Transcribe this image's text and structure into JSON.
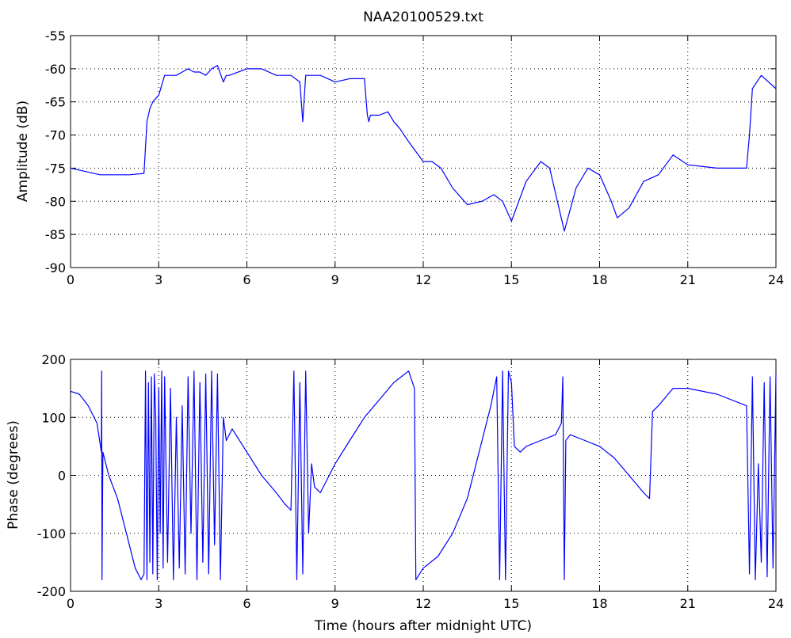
{
  "figure": {
    "background": "#ffffff",
    "line_color": "#0000ff"
  },
  "chart_data": [
    {
      "type": "line",
      "title": "NAA20100529.txt",
      "xlabel": "",
      "ylabel": "Amplitude (dB)",
      "xlim": [
        0,
        24
      ],
      "ylim": [
        -90,
        -55
      ],
      "xticks": [
        0,
        3,
        6,
        9,
        12,
        15,
        18,
        21,
        24
      ],
      "yticks": [
        -90,
        -85,
        -80,
        -75,
        -70,
        -65,
        -60,
        -55
      ],
      "grid": true,
      "color": "#0000ff",
      "series": [
        {
          "x": [
            0,
            0.5,
            1,
            1.5,
            2,
            2.5,
            2.6,
            2.7,
            2.8,
            3,
            3.2,
            3.4,
            3.6,
            3.8,
            4,
            4.2,
            4.4,
            4.6,
            4.8,
            5,
            5.2,
            5.3,
            5.4,
            6,
            6.5,
            7,
            7.5,
            7.8,
            7.9,
            8,
            8.1,
            8.5,
            9,
            9.5,
            10,
            10.1,
            10.15,
            10.2,
            10.5,
            10.8,
            11,
            11.2,
            11.5,
            12,
            12.3,
            12.6,
            13,
            13.5,
            14,
            14.4,
            14.7,
            15,
            15.5,
            16,
            16.3,
            16.8,
            17.2,
            17.6,
            18,
            18.4,
            18.6,
            19,
            19.5,
            20,
            20.5,
            21,
            22,
            23,
            23.1,
            23.2,
            23.5,
            24
          ],
          "y": [
            -75,
            -75.5,
            -76,
            -76,
            -76,
            -75.8,
            -68,
            -66,
            -65,
            -64,
            -61,
            -61,
            -61,
            -60.5,
            -60,
            -60.5,
            -60.5,
            -61,
            -60,
            -59.5,
            -62,
            -61,
            -61,
            -60,
            -60,
            -61,
            -61,
            -62,
            -68,
            -61,
            -61,
            -61,
            -62,
            -61.5,
            -61.5,
            -67,
            -68,
            -67,
            -67,
            -66.5,
            -68,
            -69,
            -71,
            -74,
            -74,
            -75,
            -78,
            -80.5,
            -80,
            -79,
            -80,
            -83,
            -77,
            -74,
            -75,
            -84.5,
            -78,
            -75,
            -76,
            -80,
            -82.5,
            -81,
            -77,
            -76,
            -73,
            -74.5,
            -75,
            -75,
            -70,
            -63,
            -61,
            -63
          ]
        }
      ]
    },
    {
      "type": "line",
      "title": "",
      "xlabel": "Time (hours after midnight UTC)",
      "ylabel": "Phase (degrees)",
      "xlim": [
        0,
        24
      ],
      "ylim": [
        -200,
        200
      ],
      "xticks": [
        0,
        3,
        6,
        9,
        12,
        15,
        18,
        21,
        24
      ],
      "yticks": [
        -200,
        -100,
        0,
        100,
        200
      ],
      "grid": true,
      "color": "#0000ff",
      "series": [
        {
          "x": [
            0,
            0.3,
            0.6,
            0.9,
            1.05,
            1.06,
            1.07,
            1.1,
            1.3,
            1.6,
            1.9,
            2.2,
            2.4,
            2.5,
            2.55,
            2.6,
            2.65,
            2.7,
            2.75,
            2.8,
            2.85,
            2.9,
            2.95,
            3.0,
            3.05,
            3.1,
            3.15,
            3.2,
            3.3,
            3.4,
            3.5,
            3.6,
            3.7,
            3.8,
            3.9,
            4.0,
            4.1,
            4.2,
            4.3,
            4.4,
            4.5,
            4.6,
            4.7,
            4.8,
            4.9,
            5.0,
            5.1,
            5.2,
            5.3,
            5.5,
            6,
            6.5,
            7,
            7.3,
            7.5,
            7.6,
            7.7,
            7.8,
            7.9,
            8.0,
            8.1,
            8.2,
            8.3,
            8.5,
            9,
            9.5,
            10,
            10.5,
            11,
            11.5,
            11.7,
            11.75,
            12,
            12.5,
            13,
            13.5,
            14,
            14.3,
            14.5,
            14.6,
            14.7,
            14.8,
            14.9,
            15.0,
            15.1,
            15.3,
            15.5,
            16,
            16.5,
            16.7,
            16.75,
            16.8,
            16.85,
            17,
            17.5,
            18,
            18.5,
            19,
            19.5,
            19.7,
            19.8,
            20,
            20.5,
            21,
            22,
            23,
            23.1,
            23.2,
            23.3,
            23.4,
            23.5,
            23.6,
            23.7,
            23.8,
            23.9,
            24
          ],
          "y": [
            145,
            140,
            120,
            90,
            40,
            180,
            -180,
            40,
            0,
            -40,
            -100,
            -160,
            -180,
            -170,
            180,
            -180,
            160,
            -150,
            170,
            -170,
            175,
            100,
            -180,
            150,
            -100,
            180,
            -160,
            170,
            -150,
            150,
            -180,
            100,
            -160,
            120,
            -170,
            170,
            -100,
            180,
            -180,
            160,
            -150,
            175,
            -170,
            180,
            -120,
            175,
            -180,
            100,
            60,
            80,
            40,
            0,
            -30,
            -50,
            -60,
            180,
            -180,
            160,
            -170,
            180,
            -100,
            20,
            -20,
            -30,
            20,
            60,
            100,
            130,
            160,
            180,
            150,
            -180,
            -160,
            -140,
            -100,
            -40,
            60,
            120,
            170,
            -180,
            180,
            -180,
            180,
            160,
            50,
            40,
            50,
            60,
            70,
            90,
            170,
            -180,
            60,
            70,
            60,
            50,
            30,
            0,
            -30,
            -40,
            110,
            120,
            150,
            150,
            140,
            120,
            -170,
            170,
            -180,
            20,
            -150,
            160,
            -175,
            170,
            -160,
            175
          ]
        }
      ]
    }
  ]
}
